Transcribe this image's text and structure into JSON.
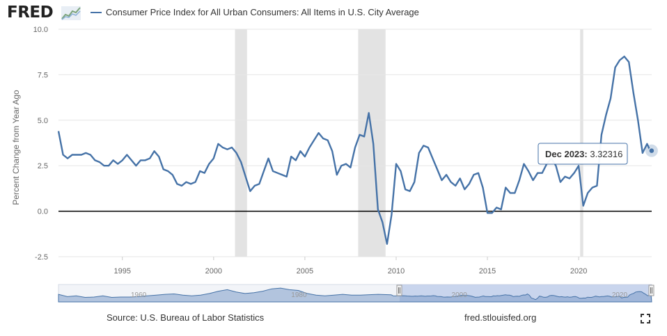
{
  "header": {
    "logo_text": "FRED",
    "logo_icon": "fred-graph-icon"
  },
  "footer": {
    "source": "Source: U.S. Bureau of Labor Statistics",
    "url": "fred.stlouisfed.org",
    "fullscreen_icon": "fullscreen-icon"
  },
  "colors": {
    "series": "#4572a7",
    "recession": "#e3e3e3",
    "navigator_fill": "#c5d3ea",
    "navigator_selected": "#b8c8e8"
  },
  "tooltip": {
    "label": "Dec 2023",
    "value": "3.32316"
  },
  "chart_data": {
    "type": "line",
    "title": "",
    "xlabel": "",
    "ylabel": "Percent Change from Year Ago",
    "xlim": [
      1991.5,
      2024.0
    ],
    "ylim": [
      -2.5,
      10.0
    ],
    "y_ticks": [
      "10.0",
      "7.5",
      "5.0",
      "2.5",
      "0.0",
      "-2.5"
    ],
    "x_ticks": [
      "1995",
      "2000",
      "2005",
      "2010",
      "2015",
      "2020"
    ],
    "navigator_ticks": [
      "1960",
      "1980",
      "2000",
      "2020"
    ],
    "grid": true,
    "legend_position": "top-left",
    "recessions": [
      [
        2001.17,
        2001.83
      ],
      [
        2007.92,
        2009.42
      ],
      [
        2020.08,
        2020.25
      ]
    ],
    "series": [
      {
        "name": "Consumer Price Index for All Urban Consumers: All Items in U.S. City Average",
        "x": [
          1991.5,
          1991.75,
          1992.0,
          1992.25,
          1992.5,
          1992.75,
          1993.0,
          1993.25,
          1993.5,
          1993.75,
          1994.0,
          1994.25,
          1994.5,
          1994.75,
          1995.0,
          1995.25,
          1995.5,
          1995.75,
          1996.0,
          1996.25,
          1996.5,
          1996.75,
          1997.0,
          1997.25,
          1997.5,
          1997.75,
          1998.0,
          1998.25,
          1998.5,
          1998.75,
          1999.0,
          1999.25,
          1999.5,
          1999.75,
          2000.0,
          2000.25,
          2000.5,
          2000.75,
          2001.0,
          2001.25,
          2001.5,
          2001.75,
          2002.0,
          2002.25,
          2002.5,
          2002.75,
          2003.0,
          2003.25,
          2003.5,
          2003.75,
          2004.0,
          2004.25,
          2004.5,
          2004.75,
          2005.0,
          2005.25,
          2005.5,
          2005.75,
          2006.0,
          2006.25,
          2006.5,
          2006.75,
          2007.0,
          2007.25,
          2007.5,
          2007.75,
          2008.0,
          2008.25,
          2008.5,
          2008.75,
          2009.0,
          2009.25,
          2009.5,
          2009.75,
          2010.0,
          2010.25,
          2010.5,
          2010.75,
          2011.0,
          2011.25,
          2011.5,
          2011.75,
          2012.0,
          2012.25,
          2012.5,
          2012.75,
          2013.0,
          2013.25,
          2013.5,
          2013.75,
          2014.0,
          2014.25,
          2014.5,
          2014.75,
          2015.0,
          2015.25,
          2015.5,
          2015.75,
          2016.0,
          2016.25,
          2016.5,
          2016.75,
          2017.0,
          2017.25,
          2017.5,
          2017.75,
          2018.0,
          2018.25,
          2018.5,
          2018.75,
          2019.0,
          2019.25,
          2019.5,
          2019.75,
          2020.0,
          2020.25,
          2020.5,
          2020.75,
          2021.0,
          2021.25,
          2021.5,
          2021.75,
          2022.0,
          2022.25,
          2022.5,
          2022.75,
          2023.0,
          2023.25,
          2023.5,
          2023.75,
          2023.92
        ],
        "values": [
          4.4,
          3.1,
          2.9,
          3.1,
          3.1,
          3.1,
          3.2,
          3.1,
          2.8,
          2.7,
          2.5,
          2.5,
          2.8,
          2.6,
          2.8,
          3.1,
          2.8,
          2.5,
          2.8,
          2.8,
          2.9,
          3.3,
          3.0,
          2.3,
          2.2,
          2.0,
          1.5,
          1.4,
          1.6,
          1.5,
          1.6,
          2.2,
          2.1,
          2.6,
          2.9,
          3.7,
          3.5,
          3.4,
          3.5,
          3.2,
          2.7,
          1.9,
          1.1,
          1.4,
          1.5,
          2.2,
          2.9,
          2.2,
          2.1,
          2.0,
          1.9,
          3.0,
          2.8,
          3.3,
          3.0,
          3.5,
          3.9,
          4.3,
          4.0,
          3.9,
          3.3,
          2.0,
          2.5,
          2.6,
          2.4,
          3.5,
          4.2,
          4.1,
          5.4,
          3.7,
          0.1,
          -0.6,
          -1.8,
          -0.2,
          2.6,
          2.2,
          1.2,
          1.1,
          1.6,
          3.2,
          3.6,
          3.5,
          2.9,
          2.3,
          1.7,
          2.0,
          1.6,
          1.4,
          1.8,
          1.2,
          1.5,
          2.0,
          2.1,
          1.3,
          -0.1,
          -0.1,
          0.2,
          0.1,
          1.3,
          1.0,
          1.0,
          1.7,
          2.6,
          2.2,
          1.7,
          2.1,
          2.1,
          2.6,
          2.9,
          2.5,
          1.6,
          1.9,
          1.8,
          2.1,
          2.5,
          0.3,
          1.0,
          1.3,
          1.4,
          4.2,
          5.3,
          6.2,
          7.9,
          8.3,
          8.5,
          8.2,
          6.5,
          5.0,
          3.2,
          3.7,
          3.32316
        ]
      }
    ]
  }
}
